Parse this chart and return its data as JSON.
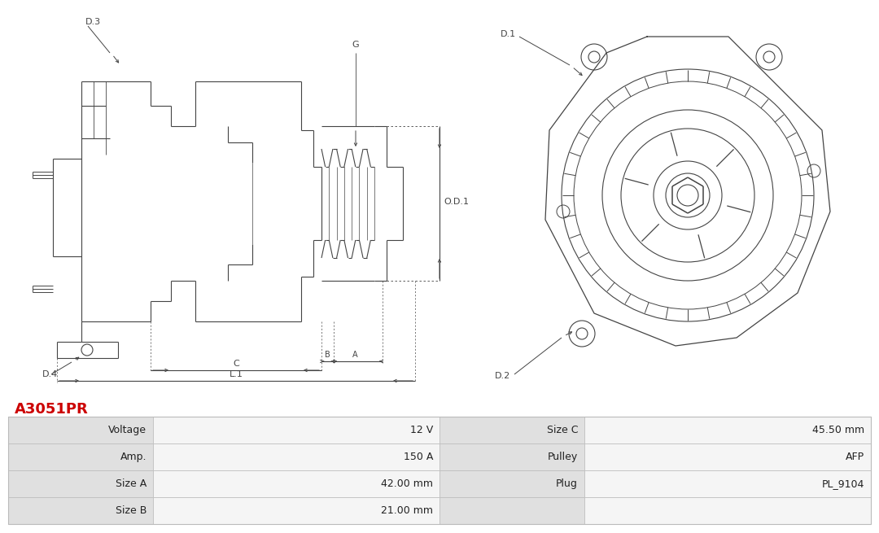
{
  "title": "A3051PR",
  "title_color": "#cc0000",
  "bg_color": "#ffffff",
  "table_rows": [
    [
      "Voltage",
      "12 V",
      "Size C",
      "45.50 mm"
    ],
    [
      "Amp.",
      "150 A",
      "Pulley",
      "AFP"
    ],
    [
      "Size A",
      "42.00 mm",
      "Plug",
      "PL_9104"
    ],
    [
      "Size B",
      "21.00 mm",
      "",
      ""
    ]
  ],
  "table_border_color": "#bbbbbb",
  "diagram_line_color": "#444444",
  "annotation_color": "#444444",
  "font_size_table": 9,
  "font_size_title": 13,
  "font_size_labels": 8,
  "label_col_bg": "#e0e0e0",
  "value_col_bg": "#f5f5f5"
}
